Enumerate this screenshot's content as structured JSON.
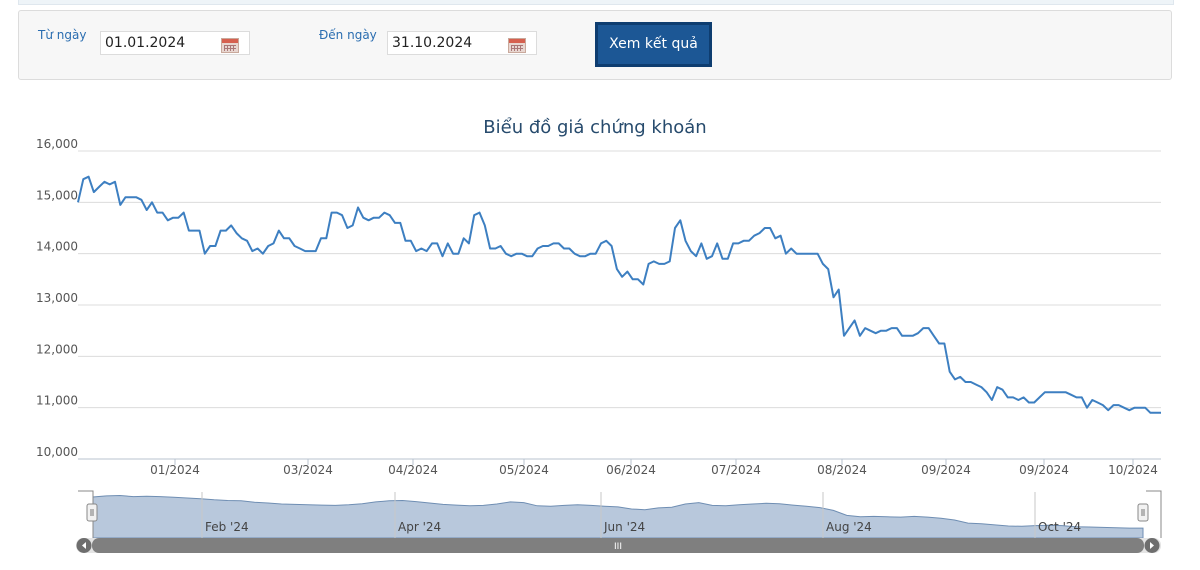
{
  "filter": {
    "from_label": "Từ ngày",
    "from_value": "01.01.2024",
    "to_label": "Đến ngày",
    "to_value": "31.10.2024",
    "submit_label": "Xem kết quả"
  },
  "navigator": {
    "labels": [
      "Feb '24",
      "Apr '24",
      "Jun '24",
      "Aug '24",
      "Oct '24"
    ],
    "scroll_grip": "III"
  },
  "colors": {
    "line": "#3d7fc1",
    "navigator_fill": "#b8c8dc",
    "button": "#1c5795"
  },
  "chart_data": {
    "type": "line",
    "title": "Biểu đồ giá chứng khoán",
    "ylim": [
      10000,
      16000
    ],
    "yticks": [
      10000,
      11000,
      12000,
      13000,
      14000,
      15000,
      16000
    ],
    "ytick_labels": [
      "10,000",
      "11,000",
      "12,000",
      "13,000",
      "14,000",
      "15,000",
      "16,000"
    ],
    "xtick_labels": [
      "01/2024",
      "03/2024",
      "04/2024",
      "05/2024",
      "06/2024",
      "07/2024",
      "08/2024",
      "09/2024",
      "09/2024",
      "10/2024"
    ],
    "grid": true,
    "legend": "none",
    "series": [
      {
        "values": [
          15000,
          15450,
          15500,
          15200,
          15300,
          15400,
          15350,
          15400,
          14950,
          15100,
          15100,
          15100,
          15050,
          14850,
          15000,
          14800,
          14800,
          14650,
          14700,
          14700,
          14800,
          14450,
          14450,
          14450,
          14000,
          14150,
          14150,
          14450,
          14450,
          14550,
          14400,
          14300,
          14250,
          14050,
          14100,
          14000,
          14150,
          14200,
          14450,
          14300,
          14300,
          14150,
          14100,
          14050,
          14050,
          14050,
          14300,
          14300,
          14800,
          14800,
          14750,
          14500,
          14550,
          14900,
          14700,
          14650,
          14700,
          14700,
          14800,
          14750,
          14600,
          14600,
          14250,
          14250,
          14050,
          14100,
          14050,
          14200,
          14200,
          13950,
          14200,
          14000,
          14000,
          14300,
          14200,
          14750,
          14800,
          14550,
          14100,
          14100,
          14150,
          14000,
          13950,
          14000,
          14000,
          13950,
          13950,
          14100,
          14150,
          14150,
          14200,
          14200,
          14100,
          14100,
          14000,
          13950,
          13950,
          14000,
          14000,
          14200,
          14250,
          14150,
          13700,
          13550,
          13650,
          13500,
          13500,
          13400,
          13800,
          13850,
          13800,
          13800,
          13850,
          14500,
          14650,
          14250,
          14050,
          13950,
          14200,
          13900,
          13950,
          14200,
          13900,
          13900,
          14200,
          14200,
          14250,
          14250,
          14350,
          14400,
          14500,
          14500,
          14300,
          14350,
          14000,
          14100,
          14000,
          14000,
          14000,
          14000,
          14000,
          13800,
          13700,
          13150,
          13300,
          12400,
          12550,
          12700,
          12400,
          12550,
          12500,
          12450,
          12500,
          12500,
          12550,
          12550,
          12400,
          12400,
          12400,
          12450,
          12550,
          12550,
          12400,
          12250,
          12250,
          11700,
          11550,
          11600,
          11500,
          11500,
          11450,
          11400,
          11300,
          11150,
          11400,
          11350,
          11200,
          11200,
          11150,
          11200,
          11100,
          11100,
          11200,
          11300,
          11300,
          11300,
          11300,
          11300,
          11250,
          11200,
          11200,
          11000,
          11150,
          11100,
          11050,
          10950,
          11050,
          11050,
          11000,
          10950,
          11000,
          11000,
          11000,
          10900,
          10900,
          10900
        ]
      }
    ],
    "navigator": {
      "values": [
        15300,
        15450,
        15500,
        15350,
        15400,
        15350,
        15250,
        15150,
        15050,
        14900,
        14800,
        14750,
        14550,
        14450,
        14300,
        14250,
        14200,
        14150,
        14100,
        14200,
        14350,
        14600,
        14750,
        14800,
        14650,
        14450,
        14250,
        14150,
        14050,
        14100,
        14300,
        14600,
        14500,
        14050,
        14000,
        14100,
        14200,
        14100,
        14000,
        13900,
        13600,
        13500,
        13750,
        13850,
        14300,
        14500,
        14100,
        14050,
        14200,
        14300,
        14400,
        14350,
        14150,
        14000,
        13800,
        13400,
        12700,
        12500,
        12550,
        12500,
        12450,
        12550,
        12450,
        12300,
        12050,
        11600,
        11500,
        11350,
        11200,
        11150,
        11250,
        11300,
        11250,
        11100,
        11050,
        11000,
        10950,
        10900,
        10900
      ]
    }
  }
}
